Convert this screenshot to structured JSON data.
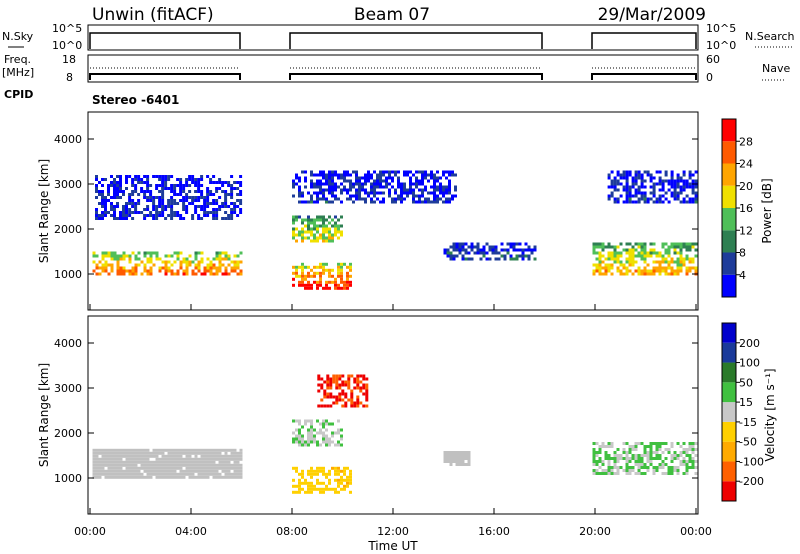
{
  "header": {
    "station": "Unwin (fitACF)",
    "beam": "Beam 07",
    "date": "29/Mar/2009"
  },
  "strips": {
    "nsky_label": "N.Sky",
    "nsearch_label": "N.Search",
    "nsky_ticks": [
      "10^5",
      "10^0"
    ],
    "nsearch_ticks": [
      "10^5",
      "10^0"
    ],
    "freq_label_1": "Freq.",
    "freq_label_2": "[MHz]",
    "freq_ticks": [
      "18",
      "8"
    ],
    "nave_label": "Nave",
    "nave_ticks": [
      "60",
      "0"
    ],
    "cpid_label": "CPID",
    "cpid_value": "Stereo -6401"
  },
  "colors": {
    "power_scale": [
      "#0000ff",
      "#1e3c9a",
      "#2e7f52",
      "#4fbf58",
      "#f0e000",
      "#ffa500",
      "#ff5a00",
      "#ff0000"
    ],
    "velocity_scale": [
      "#ee0000",
      "#ff6000",
      "#ffaa00",
      "#ffd000",
      "#c8c8c8",
      "#40c040",
      "#2a7a2a",
      "#1a3a9a",
      "#0000cc"
    ],
    "ground_scatter": "#c0c0c0"
  },
  "chart_data": [
    {
      "type": "heatmap",
      "panel": "power",
      "ylabel": "Slant Range [km]",
      "yticks": [
        "4000",
        "3000",
        "2000",
        "1000"
      ],
      "ylim": [
        200,
        4600
      ],
      "xlim_hours": [
        0,
        24
      ],
      "colorbar_label": "Power [dB]",
      "colorbar_ticks": [
        "28",
        "24",
        "20",
        "16",
        "12",
        "8",
        "4"
      ],
      "colorbar_range": [
        0,
        32
      ],
      "data_gaps_hours": [
        [
          6.0,
          7.9
        ],
        [
          18.1,
          19.8
        ]
      ],
      "bands": [
        {
          "t": [
            0.1,
            6.0
          ],
          "range_km": [
            1000,
            1500
          ],
          "power_db": 24
        },
        {
          "t": [
            0.2,
            6.0
          ],
          "range_km": [
            2200,
            3200
          ],
          "power_db": 4
        },
        {
          "t": [
            8.0,
            10.3
          ],
          "range_km": [
            700,
            1250
          ],
          "power_db": 28
        },
        {
          "t": [
            8.0,
            10.0
          ],
          "range_km": [
            1700,
            2300
          ],
          "power_db": 18
        },
        {
          "t": [
            8.0,
            14.5
          ],
          "range_km": [
            2600,
            3300
          ],
          "power_db": 4
        },
        {
          "t": [
            14.0,
            17.6
          ],
          "range_km": [
            1300,
            1700
          ],
          "power_db": 6
        },
        {
          "t": [
            19.9,
            24.0
          ],
          "range_km": [
            1000,
            1700
          ],
          "power_db": 20
        },
        {
          "t": [
            20.5,
            24.0
          ],
          "range_km": [
            2600,
            3300
          ],
          "power_db": 4
        }
      ]
    },
    {
      "type": "heatmap",
      "panel": "velocity",
      "ylabel": "Slant Range [km]",
      "yticks": [
        "4000",
        "3000",
        "2000",
        "1000"
      ],
      "ylim": [
        200,
        4600
      ],
      "xlim_hours": [
        0,
        24
      ],
      "xticks": [
        "00:00",
        "04:00",
        "08:00",
        "12:00",
        "16:00",
        "20:00",
        "00:00"
      ],
      "xlabel": "Time UT",
      "colorbar_label": "Velocity [m s⁻¹]",
      "colorbar_ticks": [
        "200",
        "100",
        "50",
        "15",
        "-15",
        "-50",
        "-100",
        "-200"
      ],
      "colorbar_range": [
        -250,
        250
      ],
      "bands": [
        {
          "t": [
            0.1,
            6.0
          ],
          "range_km": [
            1000,
            1650
          ],
          "velocity": 0,
          "ground_scatter": true
        },
        {
          "t": [
            8.0,
            10.3
          ],
          "range_km": [
            700,
            1250
          ],
          "velocity": -60
        },
        {
          "t": [
            8.0,
            10.0
          ],
          "range_km": [
            1700,
            2300
          ],
          "velocity": 20
        },
        {
          "t": [
            9.0,
            11.0
          ],
          "range_km": [
            2600,
            3300
          ],
          "velocity": -200
        },
        {
          "t": [
            14.0,
            15.0
          ],
          "range_km": [
            1300,
            1600
          ],
          "velocity": 0,
          "ground_scatter": true
        },
        {
          "t": [
            19.9,
            24.0
          ],
          "range_km": [
            1100,
            1800
          ],
          "velocity": 30
        }
      ]
    }
  ]
}
